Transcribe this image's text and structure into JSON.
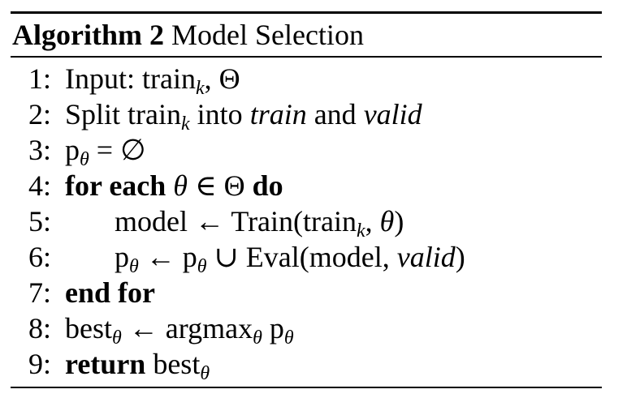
{
  "caption": {
    "label": "Algorithm 2",
    "title": "Model Selection"
  },
  "lines": [
    {
      "num": "1:"
    },
    {
      "num": "2:"
    },
    {
      "num": "3:"
    },
    {
      "num": "4:"
    },
    {
      "num": "5:"
    },
    {
      "num": "6:"
    },
    {
      "num": "7:"
    },
    {
      "num": "8:"
    },
    {
      "num": "9:"
    }
  ],
  "text": {
    "input": "Input:",
    "train": "train",
    "k": "k",
    "comma_sp": ",",
    "Theta": "Θ",
    "split": "Split",
    "into": "into",
    "train_it": "train",
    "and": "and",
    "valid": "valid",
    "p": "p",
    "theta": "θ",
    "eq_empty": "= ∅",
    "for_each": "for each",
    "in": "∈",
    "do": "do",
    "model": "model",
    "larrow": "←",
    "train_fn": "Train(",
    "close_paren": ")",
    "union": "∪",
    "eval_fn": "Eval(model,",
    "end_for": "end for",
    "best": "best",
    "argmax": "argmax",
    "return": "return"
  }
}
